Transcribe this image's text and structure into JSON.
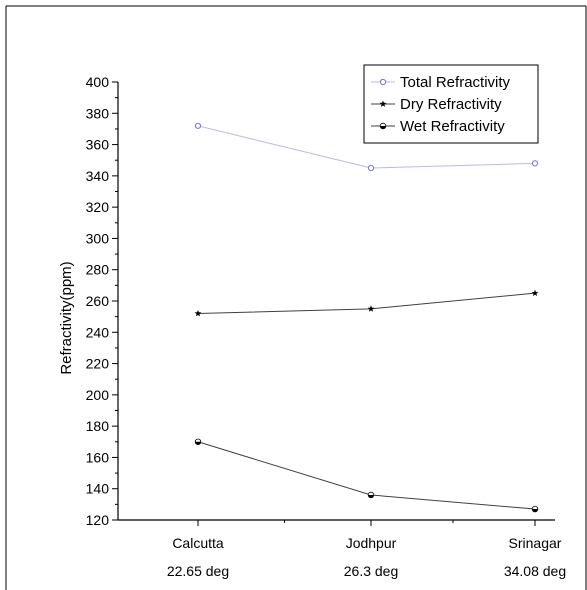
{
  "chart_data": {
    "type": "line",
    "ylabel": "Refractivity(ppm)",
    "xlabel": "",
    "ylim": [
      120,
      400
    ],
    "y_major_ticks": [
      120,
      140,
      160,
      180,
      200,
      220,
      240,
      260,
      280,
      300,
      320,
      340,
      360,
      380,
      400
    ],
    "categories": [
      "Calcutta",
      "Jodhpur",
      "Srinagar"
    ],
    "category_sublabels": [
      "22.65 deg",
      "26.3 deg",
      "34.08 deg"
    ],
    "grid": false,
    "legend_position": "top-right",
    "series": [
      {
        "name": "Total Refractivity",
        "values": [
          372,
          345,
          348
        ],
        "marker": "open-circle",
        "color": "#b8b8ee"
      },
      {
        "name": "Dry Refractivity",
        "values": [
          252,
          255,
          265
        ],
        "marker": "star",
        "color": "#404040"
      },
      {
        "name": "Wet Refractivity",
        "values": [
          170,
          136,
          127
        ],
        "marker": "half-filled-circle",
        "color": "#404040"
      }
    ]
  }
}
